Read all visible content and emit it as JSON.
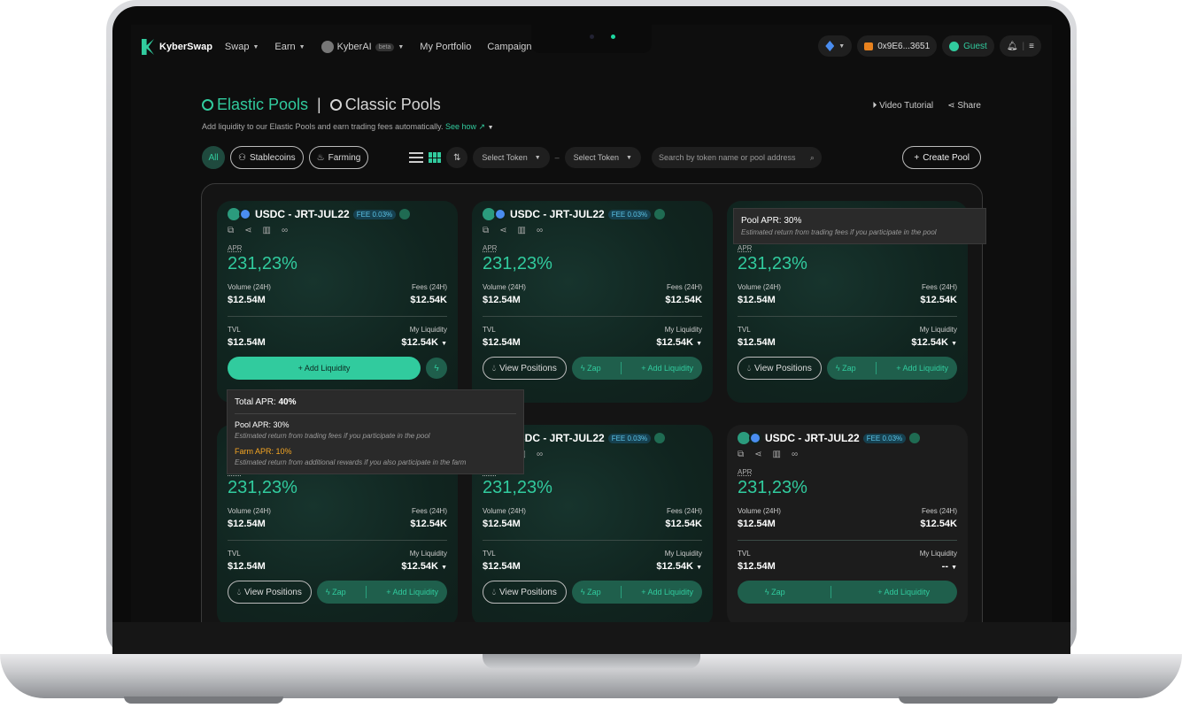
{
  "nav": {
    "brand": "KyberSwap",
    "items": [
      {
        "label": "Swap",
        "has_caret": true
      },
      {
        "label": "Earn",
        "has_caret": true
      },
      {
        "label": "KyberAI",
        "badge": "beta",
        "has_caret": true
      },
      {
        "label": "My Portfolio",
        "has_caret": false
      },
      {
        "label": "Campaign",
        "has_caret": true
      }
    ],
    "wallet": "0x9E6...3651",
    "guest": "Guest"
  },
  "header": {
    "tab_active": "Elastic Pools",
    "separator": "|",
    "tab_inactive": "Classic Pools",
    "subtitle": "Add liquidity to our Elastic Pools and earn trading fees automatically.",
    "see_how": "See how ↗",
    "video_tutorial": "Video Tutorial",
    "share": "Share"
  },
  "filters": {
    "all": "All",
    "stablecoins": "Stablecoins",
    "farming": "Farming",
    "select_token_a": "Select Token",
    "dash": "–",
    "select_token_b": "Select Token",
    "search_placeholder": "Search by token name or pool address",
    "create_pool": "Create Pool"
  },
  "card": {
    "pair": "USDC - JRT-JUL22",
    "fee": "FEE 0.03%",
    "apr_label": "APR",
    "apr": "231,23%",
    "volume_label": "Volume (24H)",
    "volume": "$12.54M",
    "fees_label": "Fees (24H)",
    "fees": "$12.54K",
    "tvl_label": "TVL",
    "tvl": "$12.54M",
    "my_liq_label": "My Liquidity",
    "my_liq": "$12.54K",
    "my_liq_empty": "--",
    "view_positions": "View Positions",
    "zap": "Zap",
    "add_liquidity": "+ Add Liquidity"
  },
  "tooltip_total": {
    "total_label": "Total APR:",
    "total_value": "40%",
    "pool_label": "Pool APR: 30%",
    "pool_desc": "Estimated return from trading fees if you participate in the pool",
    "farm_label": "Farm APR: 10%",
    "farm_desc": "Estimated return from additional rewards if you also participate in the farm"
  },
  "tooltip_pool": {
    "pool_label": "Pool APR: 30%",
    "pool_desc": "Estimated return from trading fees if you participate in the pool"
  },
  "colors": {
    "accent": "#31cb9e",
    "background": "#0e0e0e",
    "farm_orange": "#f5a623"
  }
}
